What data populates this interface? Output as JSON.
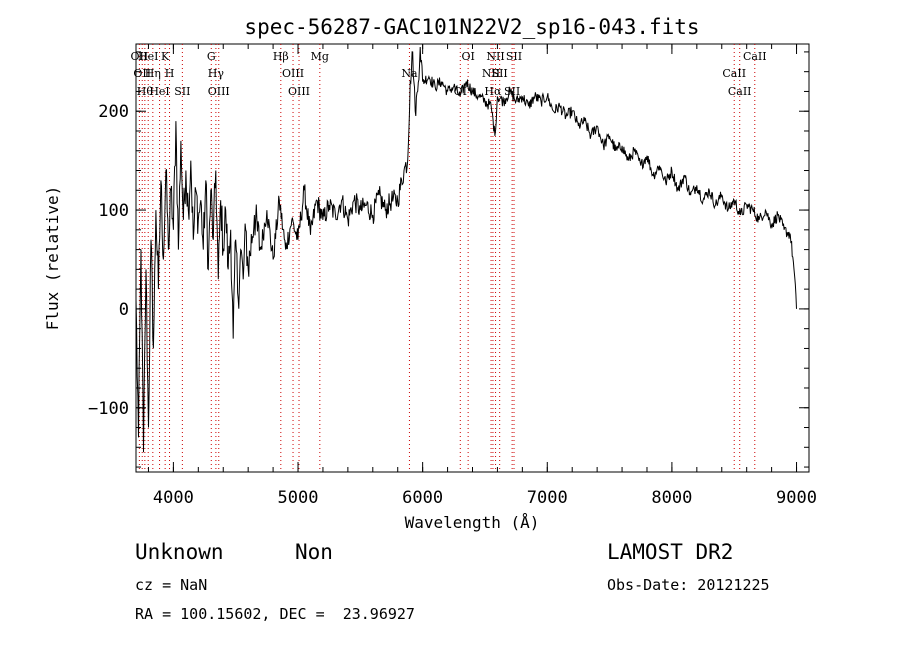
{
  "chart_data": {
    "type": "line",
    "title": "spec-56287-GAC101N22V2_sp16-043.fits",
    "xlabel": "Wavelength (Å)",
    "ylabel": "Flux (relative)",
    "xlim": [
      3700,
      9100
    ],
    "ylim": [
      -165,
      268
    ],
    "x_ticks": [
      4000,
      5000,
      6000,
      7000,
      8000,
      9000
    ],
    "y_ticks": [
      -100,
      0,
      100,
      200
    ],
    "x_tick_labels": [
      "4000",
      "5000",
      "6000",
      "7000",
      "8000",
      "9000"
    ],
    "y_tick_labels": [
      "−100",
      "0",
      "100",
      "200"
    ],
    "grid": false,
    "line_color": "#000000",
    "marker_color": "#cc0000",
    "series": [
      {
        "x": [
          3700,
          3720,
          3740,
          3760,
          3780,
          3800,
          3820,
          3840,
          3860,
          3880,
          3900,
          3920,
          3940,
          3960,
          3980,
          4000,
          4020,
          4040,
          4060,
          4080,
          4100,
          4120,
          4140,
          4160,
          4180,
          4200,
          4220,
          4240,
          4260,
          4280,
          4300,
          4320,
          4340,
          4360,
          4380,
          4400,
          4420,
          4440,
          4460,
          4480,
          4500,
          4520,
          4540,
          4560,
          4580,
          4600,
          4650,
          4700,
          4750,
          4800,
          4850,
          4900,
          4950,
          5000,
          5050,
          5100,
          5150,
          5200,
          5250,
          5300,
          5350,
          5400,
          5450,
          5500,
          5550,
          5600,
          5650,
          5700,
          5750,
          5800,
          5850,
          5880,
          5900,
          5920,
          5940,
          5960,
          5980,
          6000,
          6050,
          6100,
          6150,
          6200,
          6250,
          6300,
          6350,
          6400,
          6450,
          6500,
          6550,
          6580,
          6600,
          6650,
          6700,
          6750,
          6800,
          6850,
          6900,
          6950,
          7000,
          7050,
          7100,
          7150,
          7200,
          7250,
          7300,
          7350,
          7400,
          7450,
          7500,
          7550,
          7600,
          7650,
          7700,
          7750,
          7800,
          7850,
          7900,
          7950,
          8000,
          8050,
          8100,
          8150,
          8200,
          8250,
          8300,
          8350,
          8400,
          8450,
          8500,
          8550,
          8600,
          8650,
          8700,
          8750,
          8800,
          8850,
          8900,
          8950,
          8980,
          9000
        ],
        "y": [
          10,
          -130,
          60,
          -145,
          40,
          -120,
          70,
          -40,
          100,
          20,
          130,
          50,
          140,
          60,
          120,
          80,
          190,
          60,
          170,
          90,
          140,
          100,
          150,
          70,
          120,
          90,
          110,
          60,
          130,
          40,
          120,
          70,
          140,
          30,
          110,
          60,
          100,
          40,
          80,
          -30,
          70,
          10,
          60,
          30,
          80,
          40,
          95,
          60,
          100,
          50,
          110,
          60,
          90,
          70,
          120,
          75,
          110,
          90,
          105,
          95,
          110,
          90,
          110,
          100,
          105,
          95,
          115,
          100,
          110,
          110,
          140,
          150,
          230,
          260,
          200,
          220,
          265,
          230,
          235,
          225,
          230,
          220,
          225,
          215,
          230,
          220,
          215,
          210,
          205,
          175,
          215,
          210,
          220,
          210,
          215,
          205,
          215,
          210,
          215,
          200,
          205,
          195,
          200,
          185,
          190,
          175,
          185,
          165,
          175,
          160,
          165,
          150,
          160,
          145,
          155,
          135,
          145,
          128,
          140,
          120,
          135,
          115,
          125,
          110,
          120,
          105,
          115,
          100,
          110,
          95,
          105,
          100,
          90,
          100,
          85,
          95,
          80,
          75,
          40,
          0
        ]
      }
    ],
    "line_markers": [
      {
        "x": 3727,
        "label": "OII"
      },
      {
        "x": 3750,
        "label": "OII"
      },
      {
        "x": 3771,
        "label": "Hθ"
      },
      {
        "x": 3798,
        "label": "HeI"
      },
      {
        "x": 3835,
        "label": "Hη"
      },
      {
        "x": 3889,
        "label": "HeI"
      },
      {
        "x": 3934,
        "label": "K"
      },
      {
        "x": 3969,
        "label": "H"
      },
      {
        "x": 4072,
        "label": "SII"
      },
      {
        "x": 4304,
        "label": "G"
      },
      {
        "x": 4341,
        "label": "Hγ"
      },
      {
        "x": 4364,
        "label": "OIII"
      },
      {
        "x": 4862,
        "label": "Hβ"
      },
      {
        "x": 4960,
        "label": "OIII"
      },
      {
        "x": 5008,
        "label": "OIII"
      },
      {
        "x": 5175,
        "label": "Mg"
      },
      {
        "x": 5894,
        "label": "Na"
      },
      {
        "x": 6302,
        "label": "OI"
      },
      {
        "x": 6365,
        "label": "OI"
      },
      {
        "x": 6549,
        "label": "NII"
      },
      {
        "x": 6564,
        "label": "Hα"
      },
      {
        "x": 6585,
        "label": "NII"
      },
      {
        "x": 6618,
        "label": "SII"
      },
      {
        "x": 6718,
        "label": "SII"
      },
      {
        "x": 6733,
        "label": "SII"
      },
      {
        "x": 8500,
        "label": "CaII"
      },
      {
        "x": 8544,
        "label": "CaII"
      },
      {
        "x": 8665,
        "label": "CaII"
      }
    ]
  },
  "info": {
    "class": "Unknown",
    "subclass": "Non",
    "cz": "cz = NaN",
    "radec": "RA = 100.15602, DEC =  23.96927",
    "survey": "LAMOST DR2",
    "obsdate": "Obs-Date: 20121225"
  }
}
